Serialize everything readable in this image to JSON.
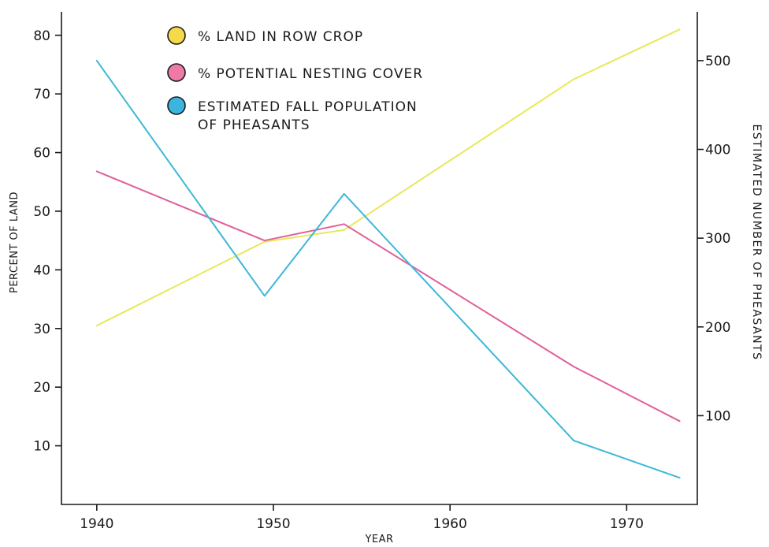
{
  "chart_data": {
    "type": "line",
    "title": "",
    "xlabel": "YEAR",
    "ylabel_left": "PERCENT OF LAND",
    "ylabel_right": "ESTIMATED NUMBER OF PHEASANTS",
    "xlim": [
      1938,
      1974
    ],
    "ylim_left": [
      0,
      84
    ],
    "ylim_right": [
      0,
      555
    ],
    "x_ticks": [
      1940,
      1950,
      1960,
      1970
    ],
    "y_ticks_left": [
      10,
      20,
      30,
      40,
      50,
      60,
      70,
      80
    ],
    "y_ticks_right": [
      100,
      200,
      300,
      400,
      500
    ],
    "grid": false,
    "legend_position": "top-center",
    "series": [
      {
        "name": "% LAND IN ROW CROP",
        "axis": "left",
        "color": "#e8e85a",
        "legend_color": "#f5d94a",
        "x": [
          1940,
          1949.5,
          1954,
          1967,
          1973
        ],
        "y": [
          30.5,
          44.8,
          46.8,
          72.5,
          81
        ]
      },
      {
        "name": "% POTENTIAL NESTING COVER",
        "axis": "left",
        "color": "#e0609a",
        "legend_color": "#ef7aa6",
        "x": [
          1940,
          1949.5,
          1954,
          1967,
          1973
        ],
        "y": [
          56.8,
          45,
          47.8,
          23.5,
          14.2
        ]
      },
      {
        "name": "ESTIMATED FALL POPULATION OF PHEASANTS",
        "legend_lines": [
          "ESTIMATED FALL POPULATION",
          "OF PHEASANTS"
        ],
        "axis": "right",
        "color": "#3cb8d8",
        "legend_color": "#3db4e0",
        "x": [
          1940,
          1949.5,
          1954,
          1967,
          1973
        ],
        "y": [
          500,
          235,
          350,
          72,
          30
        ]
      }
    ]
  }
}
